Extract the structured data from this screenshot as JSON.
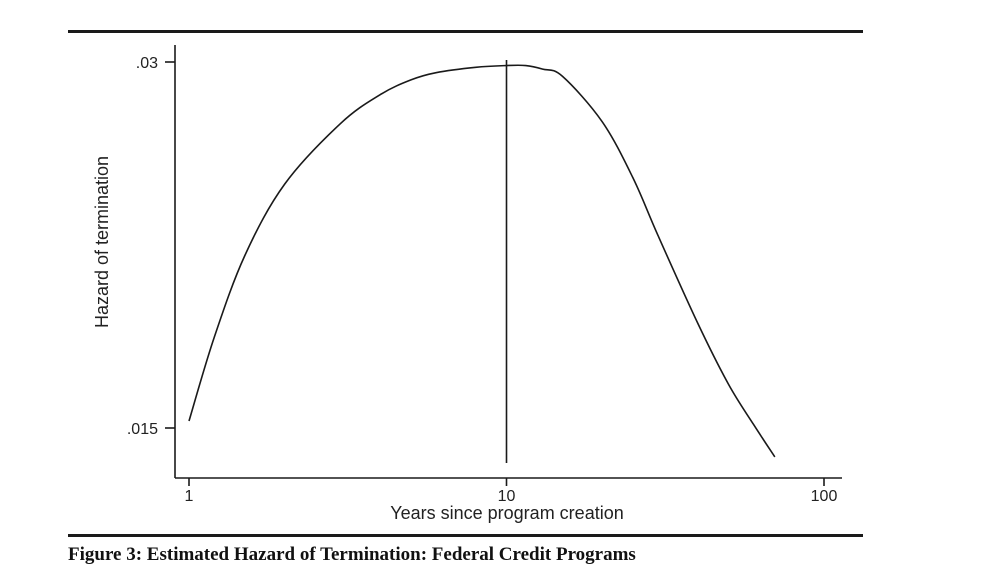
{
  "caption": "Figure 3:  Estimated Hazard of Termination: Federal Credit Programs",
  "colors": {
    "line": "#1a1a1a",
    "axis": "#1a1a1a",
    "text": "#222222",
    "background": "#ffffff"
  },
  "chart_data": {
    "type": "line",
    "title": "",
    "xlabel": "Years since program creation",
    "ylabel": "Hazard of termination",
    "x_scale": "log",
    "y_scale": "log",
    "xlim": [
      1,
      100
    ],
    "ylim": [
      0.014,
      0.03
    ],
    "x_ticks": [
      {
        "value": 1,
        "label": "1"
      },
      {
        "value": 10,
        "label": "10"
      },
      {
        "value": 100,
        "label": "100"
      }
    ],
    "y_ticks": [
      {
        "value": 0.015,
        "label": ".015"
      },
      {
        "value": 0.03,
        "label": ".03"
      }
    ],
    "grid": false,
    "legend": "none",
    "reference_lines": [
      {
        "orientation": "vertical",
        "x": 10
      }
    ],
    "series": [
      {
        "x": [
          1.0,
          1.2,
          1.5,
          2.0,
          3.0,
          4.0,
          5.0,
          6.0,
          8.0,
          10.0,
          11.5,
          13.0,
          15.0,
          20.0,
          25.0,
          30.0,
          40.0,
          50.0,
          60.0,
          70.0
        ],
        "y": [
          0.0152,
          0.0178,
          0.0208,
          0.0238,
          0.0267,
          0.0282,
          0.029,
          0.0294,
          0.0297,
          0.0298,
          0.0298,
          0.0296,
          0.0292,
          0.0268,
          0.0241,
          0.0216,
          0.0183,
          0.0163,
          0.0151,
          0.0142
        ]
      }
    ]
  }
}
